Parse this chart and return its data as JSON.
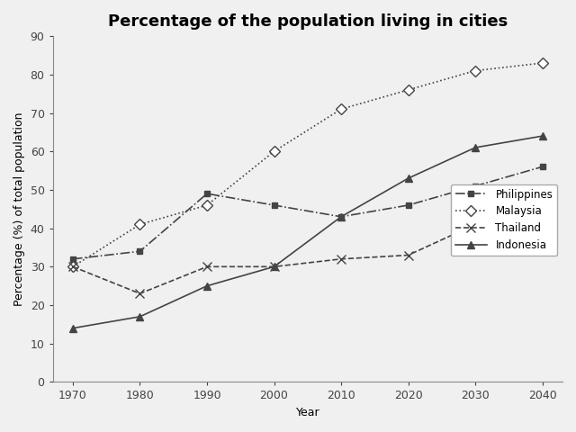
{
  "title": "Percentage of the population living in cities",
  "xlabel": "Year",
  "ylabel": "Percentage (%) of total population",
  "years": [
    1970,
    1980,
    1990,
    2000,
    2010,
    2020,
    2030,
    2040
  ],
  "series": {
    "Philippines": {
      "values": [
        32,
        34,
        49,
        46,
        43,
        46,
        51,
        56
      ],
      "color": "#444444",
      "linestyle": "-.",
      "marker": "s",
      "markersize": 5,
      "linewidth": 1.2,
      "markerfacecolor": "#444444",
      "markeredgecolor": "#444444"
    },
    "Malaysia": {
      "values": [
        30,
        41,
        46,
        60,
        71,
        76,
        81,
        83
      ],
      "color": "#444444",
      "linestyle": ":",
      "marker": "D",
      "markersize": 6,
      "linewidth": 1.2,
      "markerfacecolor": "white",
      "markeredgecolor": "#444444"
    },
    "Thailand": {
      "values": [
        30,
        23,
        30,
        30,
        32,
        33,
        41,
        50
      ],
      "color": "#444444",
      "linestyle": "--",
      "marker": "x",
      "markersize": 7,
      "linewidth": 1.2,
      "markerfacecolor": "#444444",
      "markeredgecolor": "#444444"
    },
    "Indonesia": {
      "values": [
        14,
        17,
        25,
        30,
        43,
        53,
        61,
        64
      ],
      "color": "#444444",
      "linestyle": "-",
      "marker": "^",
      "markersize": 6,
      "linewidth": 1.2,
      "markerfacecolor": "#444444",
      "markeredgecolor": "#444444"
    }
  },
  "ylim": [
    0,
    90
  ],
  "yticks": [
    0,
    10,
    20,
    30,
    40,
    50,
    60,
    70,
    80,
    90
  ],
  "xlim": [
    1967,
    2043
  ],
  "background_color": "#f0f0f0",
  "title_fontsize": 13,
  "axis_label_fontsize": 9,
  "tick_fontsize": 9,
  "legend_fontsize": 8.5
}
